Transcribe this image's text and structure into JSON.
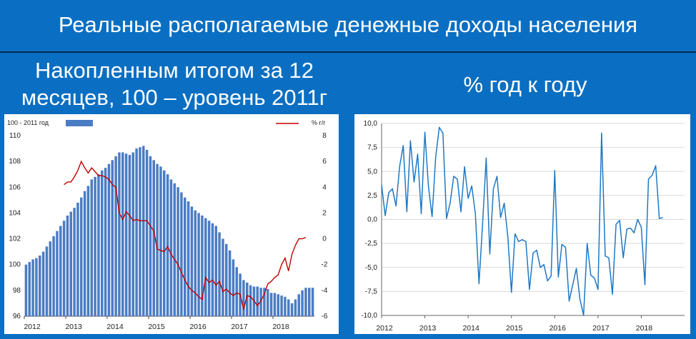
{
  "header": {
    "title": "Реальные располагаемые денежные доходы населения",
    "left_subtitle": "Накопленным итогом за 12 месяцев, 100 – уровень 2011г",
    "right_subtitle": "% год к году"
  },
  "colors": {
    "background": "#0a6fc2",
    "bar": "#4a7cc4",
    "line_left": "#c00000",
    "line_right": "#1f78c4"
  },
  "chart_data": [
    {
      "type": "bar",
      "title": "",
      "legend": {
        "bar_label": "100 - 2011 год",
        "line_label": "% г/г",
        "placement": "top"
      },
      "x_tick_labels": [
        "2012",
        "2013",
        "2014",
        "2015",
        "2016",
        "2017",
        "2018"
      ],
      "ylim_left": [
        96,
        110
      ],
      "yticks_left": [
        "96",
        "98",
        "100",
        "102",
        "104",
        "106",
        "108",
        "110"
      ],
      "ylim_right": [
        -6,
        8
      ],
      "yticks_right": [
        "-6",
        "-4",
        "-2",
        "0",
        "2",
        "4",
        "6",
        "8"
      ],
      "series": [
        {
          "kind": "bar",
          "axis": "left",
          "start": "2012-01",
          "values": [
            100.0,
            100.2,
            100.4,
            100.5,
            100.7,
            101.0,
            101.4,
            101.8,
            102.2,
            102.6,
            103.0,
            103.4,
            103.8,
            104.1,
            104.4,
            104.8,
            105.2,
            105.7,
            106.1,
            106.6,
            106.8,
            107.0,
            107.3,
            107.5,
            107.8,
            108.1,
            108.4,
            108.7,
            108.7,
            108.6,
            108.5,
            108.7,
            109.0,
            109.1,
            109.2,
            108.9,
            108.4,
            108.1,
            107.8,
            107.6,
            107.3,
            107.0,
            106.6,
            106.3,
            106.0,
            105.6,
            105.2,
            104.9,
            104.5,
            104.2,
            104.0,
            103.8,
            103.6,
            103.4,
            103.2,
            103.0,
            102.5,
            102.0,
            101.6,
            101.1,
            100.4,
            99.8,
            99.3,
            98.8,
            98.6,
            98.4,
            98.3,
            98.3,
            98.2,
            98.2,
            98.1,
            97.8,
            97.8,
            97.7,
            97.6,
            97.5,
            97.3,
            97.0,
            97.3,
            97.7,
            98.0,
            98.2,
            98.2,
            98.2
          ]
        },
        {
          "kind": "line",
          "axis": "right",
          "start": "2012-12",
          "values": [
            4.2,
            4.4,
            4.4,
            4.8,
            5.3,
            6.0,
            5.5,
            5.1,
            5.5,
            5.2,
            4.9,
            4.9,
            4.8,
            4.6,
            4.2,
            4.0,
            2.0,
            1.5,
            2.1,
            1.8,
            1.4,
            1.5,
            1.4,
            1.4,
            1.4,
            1.0,
            0.6,
            -0.8,
            -0.9,
            -1.0,
            -0.6,
            -1.2,
            -1.6,
            -2.0,
            -2.6,
            -3.2,
            -3.7,
            -4.0,
            -4.2,
            -4.5,
            -4.7,
            -3.0,
            -3.4,
            -3.2,
            -3.6,
            -3.3,
            -4.1,
            -3.9,
            -4.2,
            -4.4,
            -4.2,
            -4.3,
            -5.5,
            -4.4,
            -4.5,
            -4.8,
            -5.2,
            -4.8,
            -4.3,
            -3.5,
            -3.3,
            -3.0,
            -2.8,
            -2.0,
            -1.5,
            -2.5,
            -1.2,
            -0.5,
            0.0,
            0.0,
            0.1
          ]
        }
      ]
    },
    {
      "type": "line",
      "title": "",
      "x_tick_labels": [
        "2012",
        "2013",
        "2014",
        "2015",
        "2016",
        "2017",
        "2018"
      ],
      "ylim": [
        -10,
        10
      ],
      "yticks": [
        "-10,0",
        "-7,5",
        "-5,0",
        "-2,5",
        "0,0",
        "2,5",
        "5,0",
        "7,5",
        "10,0"
      ],
      "grid": "horizontal",
      "series": [
        {
          "start": "2012-01",
          "values": [
            3.6,
            0.4,
            2.8,
            3.2,
            1.4,
            5.5,
            7.7,
            0.8,
            8.2,
            3.9,
            6.8,
            0.6,
            9.1,
            3.4,
            0.3,
            6.5,
            9.6,
            9.0,
            0.1,
            1.7,
            4.5,
            4.2,
            0.8,
            5.5,
            2.2,
            3.5,
            0.6,
            -6.7,
            -0.5,
            6.4,
            -3.6,
            3.2,
            4.5,
            0.2,
            1.7,
            -1.8,
            -7.6,
            -1.5,
            -2.3,
            -2.1,
            -2.3,
            -7.3,
            -3.5,
            -3.2,
            -5.0,
            -4.7,
            -6.4,
            -5.9,
            5.1,
            -6.0,
            -2.6,
            -2.9,
            -8.5,
            -6.8,
            -5.1,
            -8.3,
            -10.0,
            -2.5,
            -5.8,
            -6.1,
            -7.3,
            9.0,
            -3.8,
            -4.0,
            -7.8,
            -0.5,
            -0.1,
            -4.0,
            -1.0,
            -0.9,
            -1.4,
            0.0,
            -0.8,
            -6.8,
            4.2,
            4.6,
            5.6,
            0.1,
            0.2
          ]
        }
      ]
    }
  ]
}
